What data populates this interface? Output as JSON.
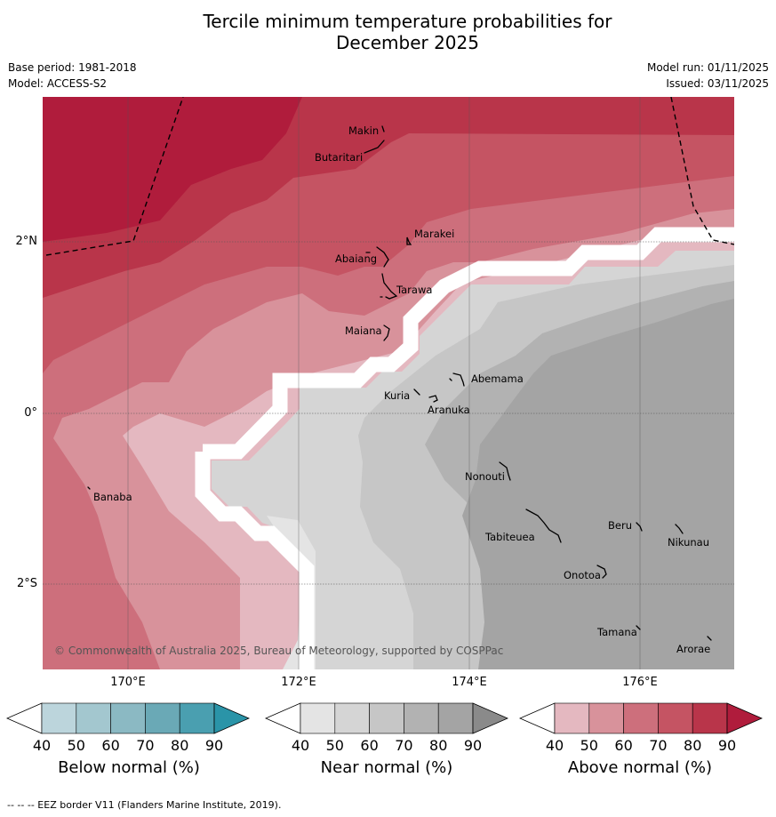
{
  "title_line1": "Tercile minimum temperature probabilities for",
  "title_line2": "December 2025",
  "base_period": "Base period: 1981-2018",
  "model": "Model: ACCESS-S2",
  "model_run": "Model run: 01/11/2025",
  "issued": "Issued: 03/11/2025",
  "copyright": "© Commonwealth of Australia 2025, Bureau of Meteorology, supported by COSPPac",
  "footnote": "--  --  -- EEZ border V11 (Flanders Marine Institute, 2019).",
  "axes": {
    "lon_labels": [
      "170°E",
      "172°E",
      "174°E",
      "176°E"
    ],
    "lat_labels": [
      "2°N",
      "0°",
      "2°S"
    ]
  },
  "places": [
    {
      "name": "Makin"
    },
    {
      "name": "Butaritari"
    },
    {
      "name": "Marakei"
    },
    {
      "name": "Abaiang"
    },
    {
      "name": "Tarawa"
    },
    {
      "name": "Maiana"
    },
    {
      "name": "Abemama"
    },
    {
      "name": "Kuria"
    },
    {
      "name": "Aranuka"
    },
    {
      "name": "Nonouti"
    },
    {
      "name": "Banaba"
    },
    {
      "name": "Beru"
    },
    {
      "name": "Tabiteuea"
    },
    {
      "name": "Nikunau"
    },
    {
      "name": "Onotoa"
    },
    {
      "name": "Tamana"
    },
    {
      "name": "Arorae"
    }
  ],
  "colorbars": [
    {
      "title": "Below normal (%)",
      "ticks": [
        "40",
        "50",
        "60",
        "70",
        "80",
        "90"
      ],
      "colors": [
        "#bcd5dc",
        "#a3c7cf",
        "#8bb9c3",
        "#6aa9b6",
        "#4a9fb0",
        "#2a94a8"
      ]
    },
    {
      "title": "Near normal (%)",
      "ticks": [
        "40",
        "50",
        "60",
        "70",
        "80",
        "90"
      ],
      "colors": [
        "#e4e4e4",
        "#d5d5d5",
        "#c6c6c6",
        "#b2b2b2",
        "#a4a4a4",
        "#8a8a8a"
      ]
    },
    {
      "title": "Above normal (%)",
      "ticks": [
        "40",
        "50",
        "60",
        "70",
        "80",
        "90"
      ],
      "colors": [
        "#e4b8c0",
        "#d8929b",
        "#cd6f7c",
        "#c55463",
        "#b9354a",
        "#b01c3c"
      ]
    }
  ]
}
